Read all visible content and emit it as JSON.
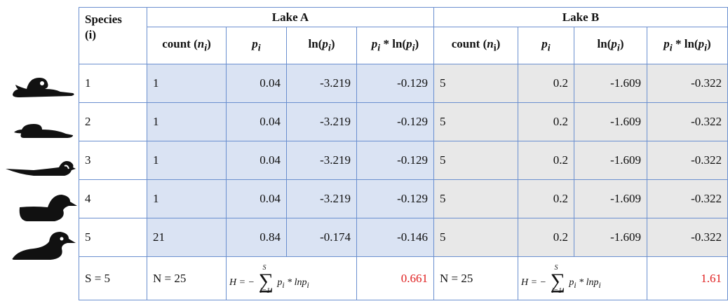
{
  "header": {
    "species_label": "Species",
    "species_sub": "(i)",
    "lake_a": "Lake A",
    "lake_b": "Lake B",
    "count": "count",
    "n_sym": "n",
    "n_sub_a": "i",
    "n_sub_b": "i",
    "p_sym": "p",
    "p_sub": "i",
    "ln": "ln",
    "times": "*"
  },
  "rows": [
    {
      "species": "1",
      "a_count": "1",
      "a_p": "0.04",
      "a_ln": "-3.219",
      "a_pln": "-0.129",
      "b_count": "5",
      "b_p": "0.2",
      "b_ln": "-1.609",
      "b_pln": "-0.322"
    },
    {
      "species": "2",
      "a_count": "1",
      "a_p": "0.04",
      "a_ln": "-3.219",
      "a_pln": "-0.129",
      "b_count": "5",
      "b_p": "0.2",
      "b_ln": "-1.609",
      "b_pln": "-0.322"
    },
    {
      "species": "3",
      "a_count": "1",
      "a_p": "0.04",
      "a_ln": "-3.219",
      "a_pln": "-0.129",
      "b_count": "5",
      "b_p": "0.2",
      "b_ln": "-1.609",
      "b_pln": "-0.322"
    },
    {
      "species": "4",
      "a_count": "1",
      "a_p": "0.04",
      "a_ln": "-3.219",
      "a_pln": "-0.129",
      "b_count": "5",
      "b_p": "0.2",
      "b_ln": "-1.609",
      "b_pln": "-0.322"
    },
    {
      "species": "5",
      "a_count": "21",
      "a_p": "0.84",
      "a_ln": "-0.174",
      "a_pln": "-0.146",
      "b_count": "5",
      "b_p": "0.2",
      "b_ln": "-1.609",
      "b_pln": "-0.322"
    }
  ],
  "footer": {
    "s_total": "S = 5",
    "a_N": "N = 25",
    "b_N": "N = 25",
    "formula_lhs": "H = −",
    "sum_top": "S",
    "sum_bot": "i=1",
    "formula_body": "p",
    "formula_sub": "i",
    "formula_tail": " * lnp",
    "a_H": "0.661",
    "b_H": "1.61"
  },
  "colors": {
    "lake_a_fill": "#dae3f3",
    "lake_b_fill": "#e8e8e8",
    "border": "#6a8fcf",
    "accent": "#e02020"
  },
  "icons": [
    "duck-silhouette-icon"
  ]
}
